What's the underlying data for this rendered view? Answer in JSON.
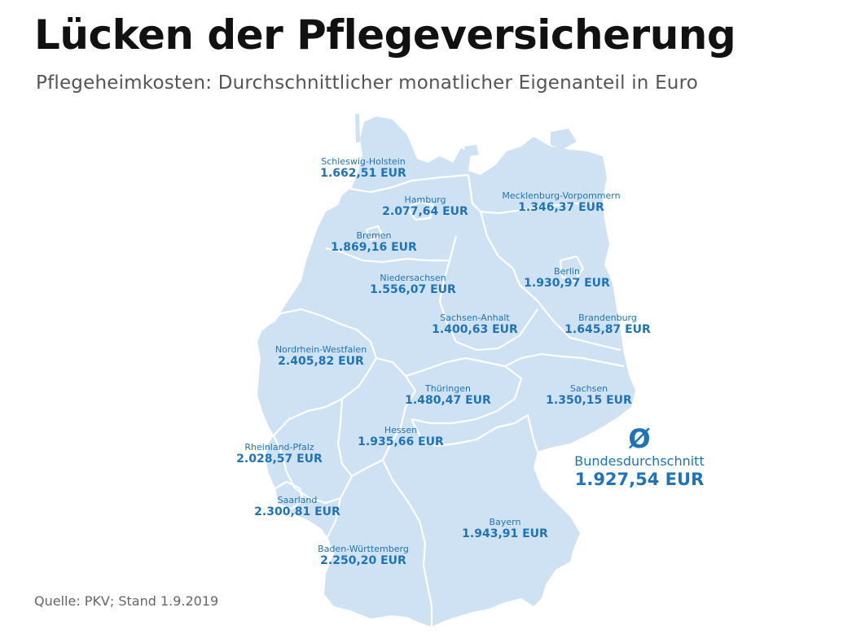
{
  "title": "Lücken der Pflegeversicherung",
  "subtitle": "Pflegeheimkosten: Durchschnittlicher monatlicher Eigenanteil in Euro",
  "source": "Quelle: PKV; Stand 1.9.2019",
  "colors": {
    "map_fill": "#cfe2f3",
    "border": "#ffffff",
    "label": "#1f73b7"
  },
  "average": {
    "symbol": "Ø",
    "label": "Bundesdurchschnitt",
    "value": "1.927,54 EUR"
  },
  "states": [
    {
      "name": "Schleswig-Holstein",
      "value": "1.662,51 EUR"
    },
    {
      "name": "Hamburg",
      "value": "2.077,64 EUR"
    },
    {
      "name": "Mecklenburg-Vorpommern",
      "value": "1.346,37 EUR"
    },
    {
      "name": "Bremen",
      "value": "1.869,16 EUR"
    },
    {
      "name": "Niedersachsen",
      "value": "1.556,07 EUR"
    },
    {
      "name": "Berlin",
      "value": "1.930,97 EUR"
    },
    {
      "name": "Sachsen-Anhalt",
      "value": "1.400,63 EUR"
    },
    {
      "name": "Brandenburg",
      "value": "1.645,87 EUR"
    },
    {
      "name": "Nordrhein-Westfalen",
      "value": "2.405,82 EUR"
    },
    {
      "name": "Thüringen",
      "value": "1.480,47 EUR"
    },
    {
      "name": "Sachsen",
      "value": "1.350,15 EUR"
    },
    {
      "name": "Hessen",
      "value": "1.935,66 EUR"
    },
    {
      "name": "Rheinland-Pfalz",
      "value": "2.028,57 EUR"
    },
    {
      "name": "Saarland",
      "value": "2.300,81 EUR"
    },
    {
      "name": "Bayern",
      "value": "1.943,91 EUR"
    },
    {
      "name": "Baden-Württemberg",
      "value": "2.250,20 EUR"
    }
  ]
}
